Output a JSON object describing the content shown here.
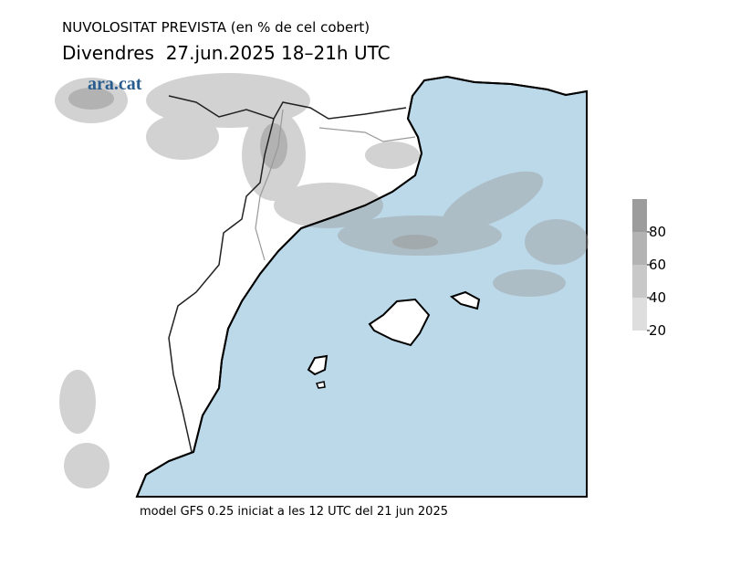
{
  "header": {
    "title": "NUVOLOSITAT PREVISTA (en % de cel cobert)",
    "subtitle": "Divendres  27.jun.2025 18–21h UTC"
  },
  "watermark": "ara.cat",
  "legend": {
    "range": [
      20,
      100
    ],
    "ticks": [
      20,
      40,
      60,
      80
    ],
    "colors": [
      "#dedede",
      "#c8c8c8",
      "#b3b3b3",
      "#9c9c9c"
    ]
  },
  "footer": "model GFS 0.25 iniciat a les 12 UTC del 21 jun 2025"
}
